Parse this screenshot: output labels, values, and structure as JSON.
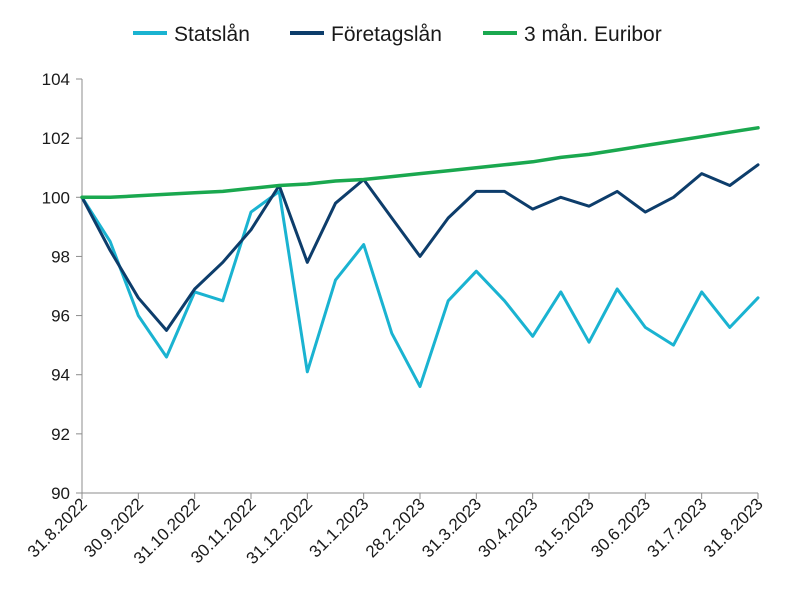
{
  "chart_data": {
    "type": "line",
    "title": "",
    "xlabel": "",
    "ylabel": "",
    "ylim": [
      90,
      104
    ],
    "yticks": [
      90,
      92,
      94,
      96,
      98,
      100,
      102,
      104
    ],
    "grid": false,
    "legend_position": "top",
    "x_tick_labels": [
      "31.8.2022",
      "30.9.2022",
      "31.10.2022",
      "30.11.2022",
      "31.12.2022",
      "31.1.2023",
      "28.2.2023",
      "31.3.2023",
      "30.4.2023",
      "31.5.2023",
      "30.6.2023",
      "31.7.2023",
      "31.8.2023"
    ],
    "x": [
      "31.8.2022",
      "15.9.2022",
      "30.9.2022",
      "15.10.2022",
      "31.10.2022",
      "15.11.2022",
      "30.11.2022",
      "15.12.2022",
      "31.12.2022",
      "15.1.2023",
      "31.1.2023",
      "15.2.2023",
      "28.2.2023",
      "15.3.2023",
      "31.3.2023",
      "15.4.2023",
      "30.4.2023",
      "15.5.2023",
      "31.5.2023",
      "15.6.2023",
      "30.6.2023",
      "15.7.2023",
      "31.7.2023",
      "15.8.2023",
      "31.8.2023"
    ],
    "series": [
      {
        "name": "Statslån",
        "color": "#1ab3d1",
        "values": [
          100.0,
          98.5,
          96.0,
          94.6,
          96.8,
          96.5,
          99.5,
          100.2,
          94.1,
          97.2,
          98.4,
          95.4,
          93.6,
          96.5,
          97.5,
          96.5,
          95.3,
          96.8,
          95.1,
          96.9,
          95.6,
          95.0,
          96.8,
          95.6,
          96.6
        ]
      },
      {
        "name": "Företagslån",
        "color": "#0d3d6b",
        "values": [
          100.0,
          98.2,
          96.6,
          95.5,
          96.9,
          97.8,
          98.9,
          100.4,
          97.8,
          99.8,
          100.6,
          99.3,
          98.0,
          99.3,
          100.2,
          100.2,
          99.6,
          100.0,
          99.7,
          100.2,
          99.5,
          100.0,
          100.8,
          100.4,
          101.1
        ]
      },
      {
        "name": "3 mån. Euribor",
        "color": "#1aa84f",
        "values": [
          100.0,
          100.0,
          100.05,
          100.1,
          100.15,
          100.2,
          100.3,
          100.4,
          100.45,
          100.55,
          100.6,
          100.7,
          100.8,
          100.9,
          101.0,
          101.1,
          101.2,
          101.35,
          101.45,
          101.6,
          101.75,
          101.9,
          102.05,
          102.2,
          102.35
        ]
      }
    ]
  }
}
